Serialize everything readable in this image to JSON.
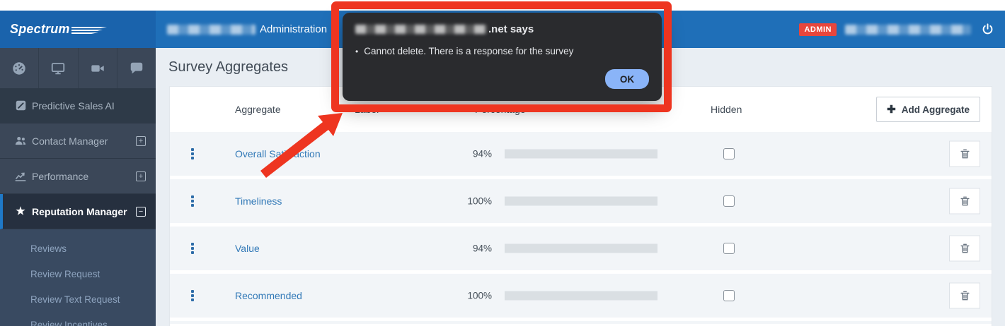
{
  "brand": {
    "name": "Spectrum"
  },
  "header": {
    "title": "Administration",
    "admin_badge": "ADMIN"
  },
  "sidebar": {
    "icon_tabs": [
      {
        "icon": "dashboard-icon"
      },
      {
        "icon": "desktop-icon"
      },
      {
        "icon": "video-icon"
      },
      {
        "icon": "chat-icon"
      }
    ],
    "items": [
      {
        "label": "Predictive Sales AI",
        "icon": "pen-square-icon",
        "expand": "none",
        "active": false,
        "dark": true
      },
      {
        "label": "Contact Manager",
        "icon": "users-icon",
        "expand": "plus",
        "active": false,
        "dark": false
      },
      {
        "label": "Performance",
        "icon": "chart-line-icon",
        "expand": "plus",
        "active": false,
        "dark": false
      },
      {
        "label": "Reputation Manager",
        "icon": "star-icon",
        "expand": "minus",
        "active": true,
        "dark": false
      }
    ],
    "submenu": [
      {
        "label": "Reviews"
      },
      {
        "label": "Review Request"
      },
      {
        "label": "Review Text Request"
      },
      {
        "label": "Review Incentives"
      }
    ]
  },
  "page": {
    "title": "Survey Aggregates"
  },
  "table": {
    "columns": {
      "aggregate": "Aggregate",
      "label": "Label",
      "percentage": "Percentage",
      "hidden": "Hidden"
    },
    "add_button_label": "Add Aggregate",
    "rows": [
      {
        "name": "Overall Satisfaction",
        "percentage": "94%",
        "value": 94,
        "hidden": false
      },
      {
        "name": "Timeliness",
        "percentage": "100%",
        "value": 100,
        "hidden": false
      },
      {
        "name": "Value",
        "percentage": "94%",
        "value": 94,
        "hidden": false
      },
      {
        "name": "Recommended",
        "percentage": "100%",
        "value": 100,
        "hidden": false
      }
    ]
  },
  "dialog": {
    "title_suffix": ".net says",
    "bullet": "•",
    "message": "Cannot delete. There is a response for the survey",
    "ok_label": "OK"
  },
  "colors": {
    "header_blue": "#1f6fb8",
    "sidebar_gray": "#3b4758",
    "active_accent": "#1f79c7",
    "bar_fill": "#3e9bdc",
    "admin_red": "#e8463c",
    "annotation_red": "#ee3520",
    "ok_button_blue": "#8ab4f8"
  }
}
